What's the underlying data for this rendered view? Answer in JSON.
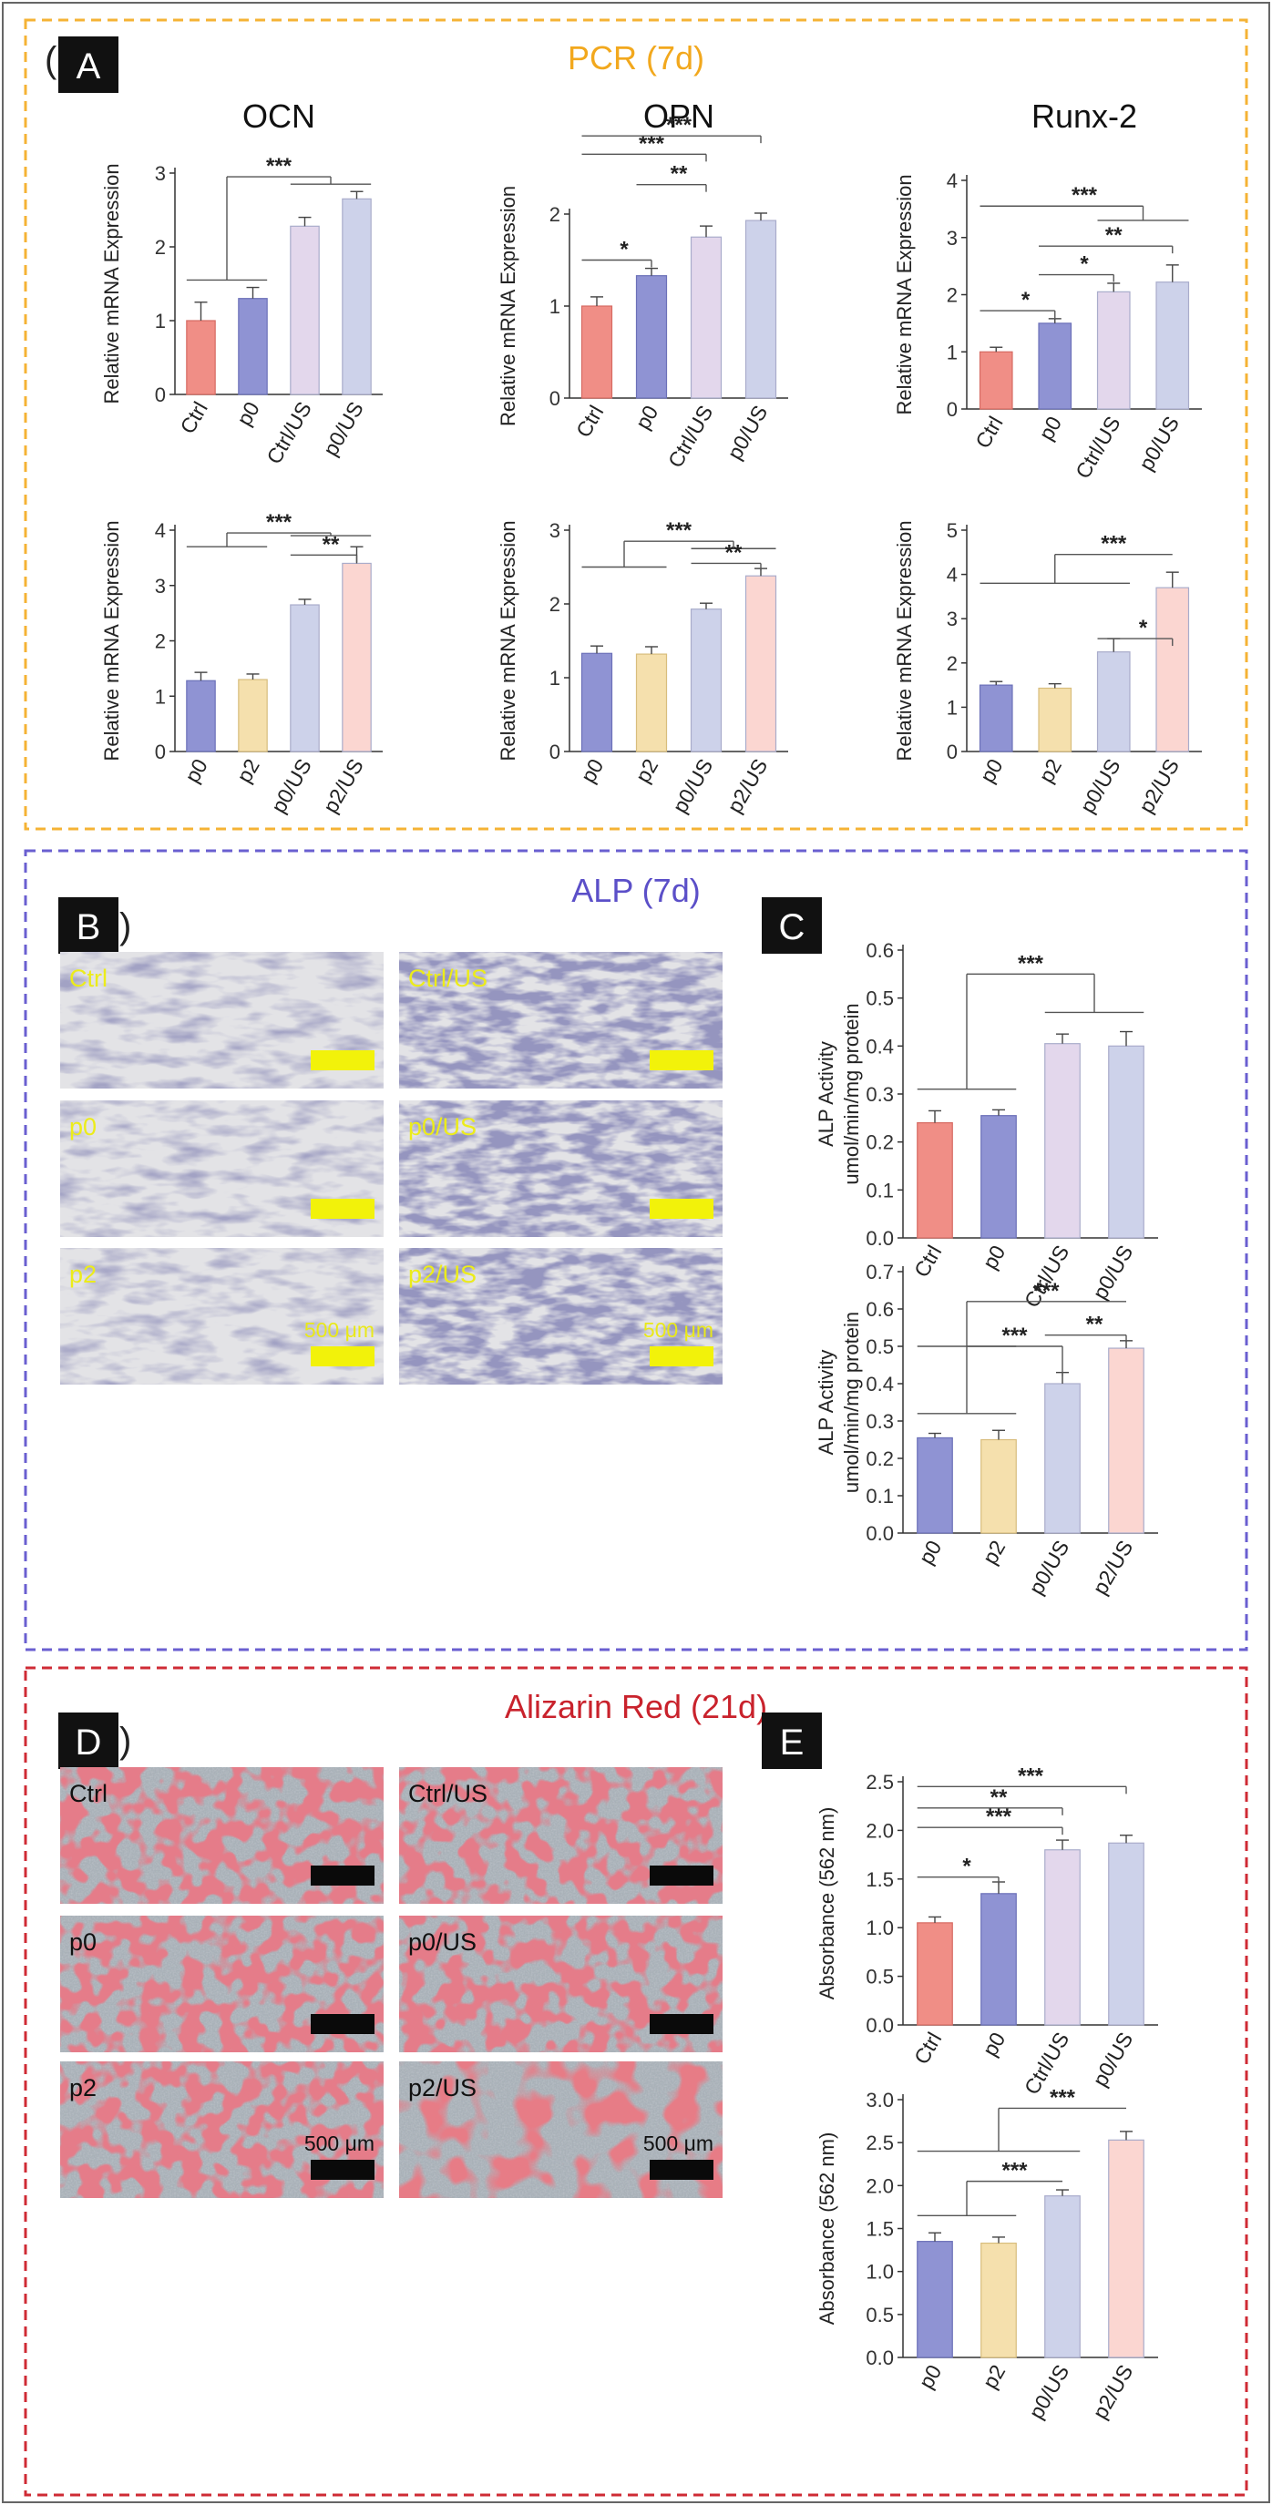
{
  "colors": {
    "frame_pcr": "#f5b335",
    "frame_alp": "#6a5fd0",
    "frame_ar": "#cf2b35",
    "title_pcr": "#f2a81d",
    "title_alp": "#5b4fc8",
    "title_ar": "#c9222c",
    "Ctrl": "#f08e86",
    "p0": "#8f93d3",
    "Ctrl/US": "#e3d7ec",
    "p0/US": "#cdd2ea",
    "p2": "#f5e0ad",
    "p2/US": "#fbd6d1"
  },
  "labels": {
    "panel_a": "A",
    "panel_b": "B",
    "panel_c": "C",
    "panel_d": "D",
    "panel_e": "E",
    "frag_a": "(",
    "frag_b": ")",
    "frag_d": ")",
    "pcr_title": "PCR (7d)",
    "alp_title": "ALP (7d)",
    "ar_title": "Alizarin Red (21d)"
  },
  "micrographs": {
    "alp": [
      {
        "label": "Ctrl"
      },
      {
        "label": "Ctrl/US"
      },
      {
        "label": "p0"
      },
      {
        "label": "p0/US"
      },
      {
        "label": "p2"
      },
      {
        "label": "p2/US"
      }
    ],
    "alp_scale": "500 μm",
    "ar": [
      {
        "label": "Ctrl"
      },
      {
        "label": "Ctrl/US"
      },
      {
        "label": "p0"
      },
      {
        "label": "p0/US"
      },
      {
        "label": "p2"
      },
      {
        "label": "p2/US"
      }
    ],
    "ar_scale": "500 μm"
  },
  "chart_data": [
    {
      "type": "bar",
      "title": "OCN",
      "ylabel": "Relative mRNA Expression",
      "ylim": [
        0,
        3
      ],
      "yticks": [
        0,
        1,
        2,
        3
      ],
      "categories": [
        "Ctrl",
        "p0",
        "Ctrl/US",
        "p0/US"
      ],
      "values": [
        1.0,
        1.3,
        2.28,
        2.65
      ],
      "errors": [
        0.25,
        0.15,
        0.12,
        0.1
      ],
      "significance": [
        {
          "label": "***"
        }
      ]
    },
    {
      "type": "bar",
      "title": "OPN",
      "ylabel": "Relative mRNA Expression",
      "ylim": [
        0,
        2
      ],
      "yticks": [
        0,
        1,
        2
      ],
      "categories": [
        "Ctrl",
        "p0",
        "Ctrl/US",
        "p0/US"
      ],
      "values": [
        1.0,
        1.33,
        1.75,
        1.93
      ],
      "errors": [
        0.1,
        0.08,
        0.12,
        0.08
      ],
      "significance": [
        {
          "label": "*"
        },
        {
          "label": "***"
        },
        {
          "label": "**"
        },
        {
          "label": "***"
        }
      ]
    },
    {
      "type": "bar",
      "title": "Runx-2",
      "ylabel": "Relative mRNA Expression",
      "ylim": [
        0,
        4
      ],
      "yticks": [
        0,
        1,
        2,
        3,
        4
      ],
      "categories": [
        "Ctrl",
        "p0",
        "Ctrl/US",
        "p0/US"
      ],
      "values": [
        1.0,
        1.5,
        2.05,
        2.22
      ],
      "errors": [
        0.08,
        0.08,
        0.15,
        0.3
      ],
      "significance": [
        {
          "label": "*"
        },
        {
          "label": "*"
        },
        {
          "label": "**"
        },
        {
          "label": "***"
        }
      ]
    },
    {
      "type": "bar",
      "title": "",
      "ylabel": "Relative mRNA Expression",
      "ylim": [
        0,
        4
      ],
      "yticks": [
        0,
        1,
        2,
        3,
        4
      ],
      "categories": [
        "p0",
        "p2",
        "p0/US",
        "p2/US"
      ],
      "values": [
        1.28,
        1.3,
        2.65,
        3.4
      ],
      "errors": [
        0.15,
        0.1,
        0.1,
        0.3
      ],
      "significance": [
        {
          "label": "***"
        },
        {
          "label": "**"
        }
      ]
    },
    {
      "type": "bar",
      "title": "",
      "ylabel": "Relative mRNA Expression",
      "ylim": [
        0,
        3
      ],
      "yticks": [
        0,
        1,
        2,
        3
      ],
      "categories": [
        "p0",
        "p2",
        "p0/US",
        "p2/US"
      ],
      "values": [
        1.33,
        1.32,
        1.93,
        2.38
      ],
      "errors": [
        0.1,
        0.1,
        0.08,
        0.1
      ],
      "significance": [
        {
          "label": "***"
        },
        {
          "label": "**"
        }
      ]
    },
    {
      "type": "bar",
      "title": "",
      "ylabel": "Relative mRNA Expression",
      "ylim": [
        0,
        5
      ],
      "yticks": [
        0,
        1,
        2,
        3,
        4,
        5
      ],
      "categories": [
        "p0",
        "p2",
        "p0/US",
        "p2/US"
      ],
      "values": [
        1.5,
        1.43,
        2.25,
        3.7
      ],
      "errors": [
        0.08,
        0.1,
        0.3,
        0.35
      ],
      "significance": [
        {
          "label": "*"
        },
        {
          "label": "***"
        }
      ]
    },
    {
      "type": "bar",
      "title": "",
      "ylabel": "ALP Activity umol/min/mg protein",
      "ylim": [
        0,
        0.6
      ],
      "yticks": [
        0.0,
        0.1,
        0.2,
        0.3,
        0.4,
        0.5,
        0.6
      ],
      "categories": [
        "Ctrl",
        "p0",
        "Ctrl/US",
        "p0/US"
      ],
      "values": [
        0.24,
        0.255,
        0.405,
        0.4
      ],
      "errors": [
        0.025,
        0.012,
        0.02,
        0.03
      ],
      "significance": [
        {
          "label": "***"
        }
      ]
    },
    {
      "type": "bar",
      "title": "",
      "ylabel": "ALP Activity umol/min/mg protein",
      "ylim": [
        0,
        0.7
      ],
      "yticks": [
        0.0,
        0.1,
        0.2,
        0.3,
        0.4,
        0.5,
        0.6,
        0.7
      ],
      "categories": [
        "p0",
        "p2",
        "p0/US",
        "p2/US"
      ],
      "values": [
        0.255,
        0.25,
        0.4,
        0.495
      ],
      "errors": [
        0.012,
        0.025,
        0.03,
        0.02
      ],
      "significance": [
        {
          "label": "***"
        },
        {
          "label": "**"
        },
        {
          "label": "***"
        }
      ]
    },
    {
      "type": "bar",
      "title": "",
      "ylabel": "Absorbance (562 nm)",
      "ylim": [
        0,
        2.5
      ],
      "yticks": [
        0.0,
        0.5,
        1.0,
        1.5,
        2.0,
        2.5
      ],
      "categories": [
        "Ctrl",
        "p0",
        "Ctrl/US",
        "p0/US"
      ],
      "values": [
        1.05,
        1.35,
        1.8,
        1.87
      ],
      "errors": [
        0.06,
        0.12,
        0.1,
        0.08
      ],
      "significance": [
        {
          "label": "*"
        },
        {
          "label": "***"
        },
        {
          "label": "**"
        },
        {
          "label": "***"
        }
      ]
    },
    {
      "type": "bar",
      "title": "",
      "ylabel": "Absorbance (562 nm)",
      "ylim": [
        0,
        3.0
      ],
      "yticks": [
        0.0,
        0.5,
        1.0,
        1.5,
        2.0,
        2.5,
        3.0
      ],
      "categories": [
        "p0",
        "p2",
        "p0/US",
        "p2/US"
      ],
      "values": [
        1.35,
        1.33,
        1.88,
        2.53
      ],
      "errors": [
        0.1,
        0.07,
        0.07,
        0.1
      ],
      "significance": [
        {
          "label": "***"
        },
        {
          "label": "***"
        }
      ]
    }
  ]
}
